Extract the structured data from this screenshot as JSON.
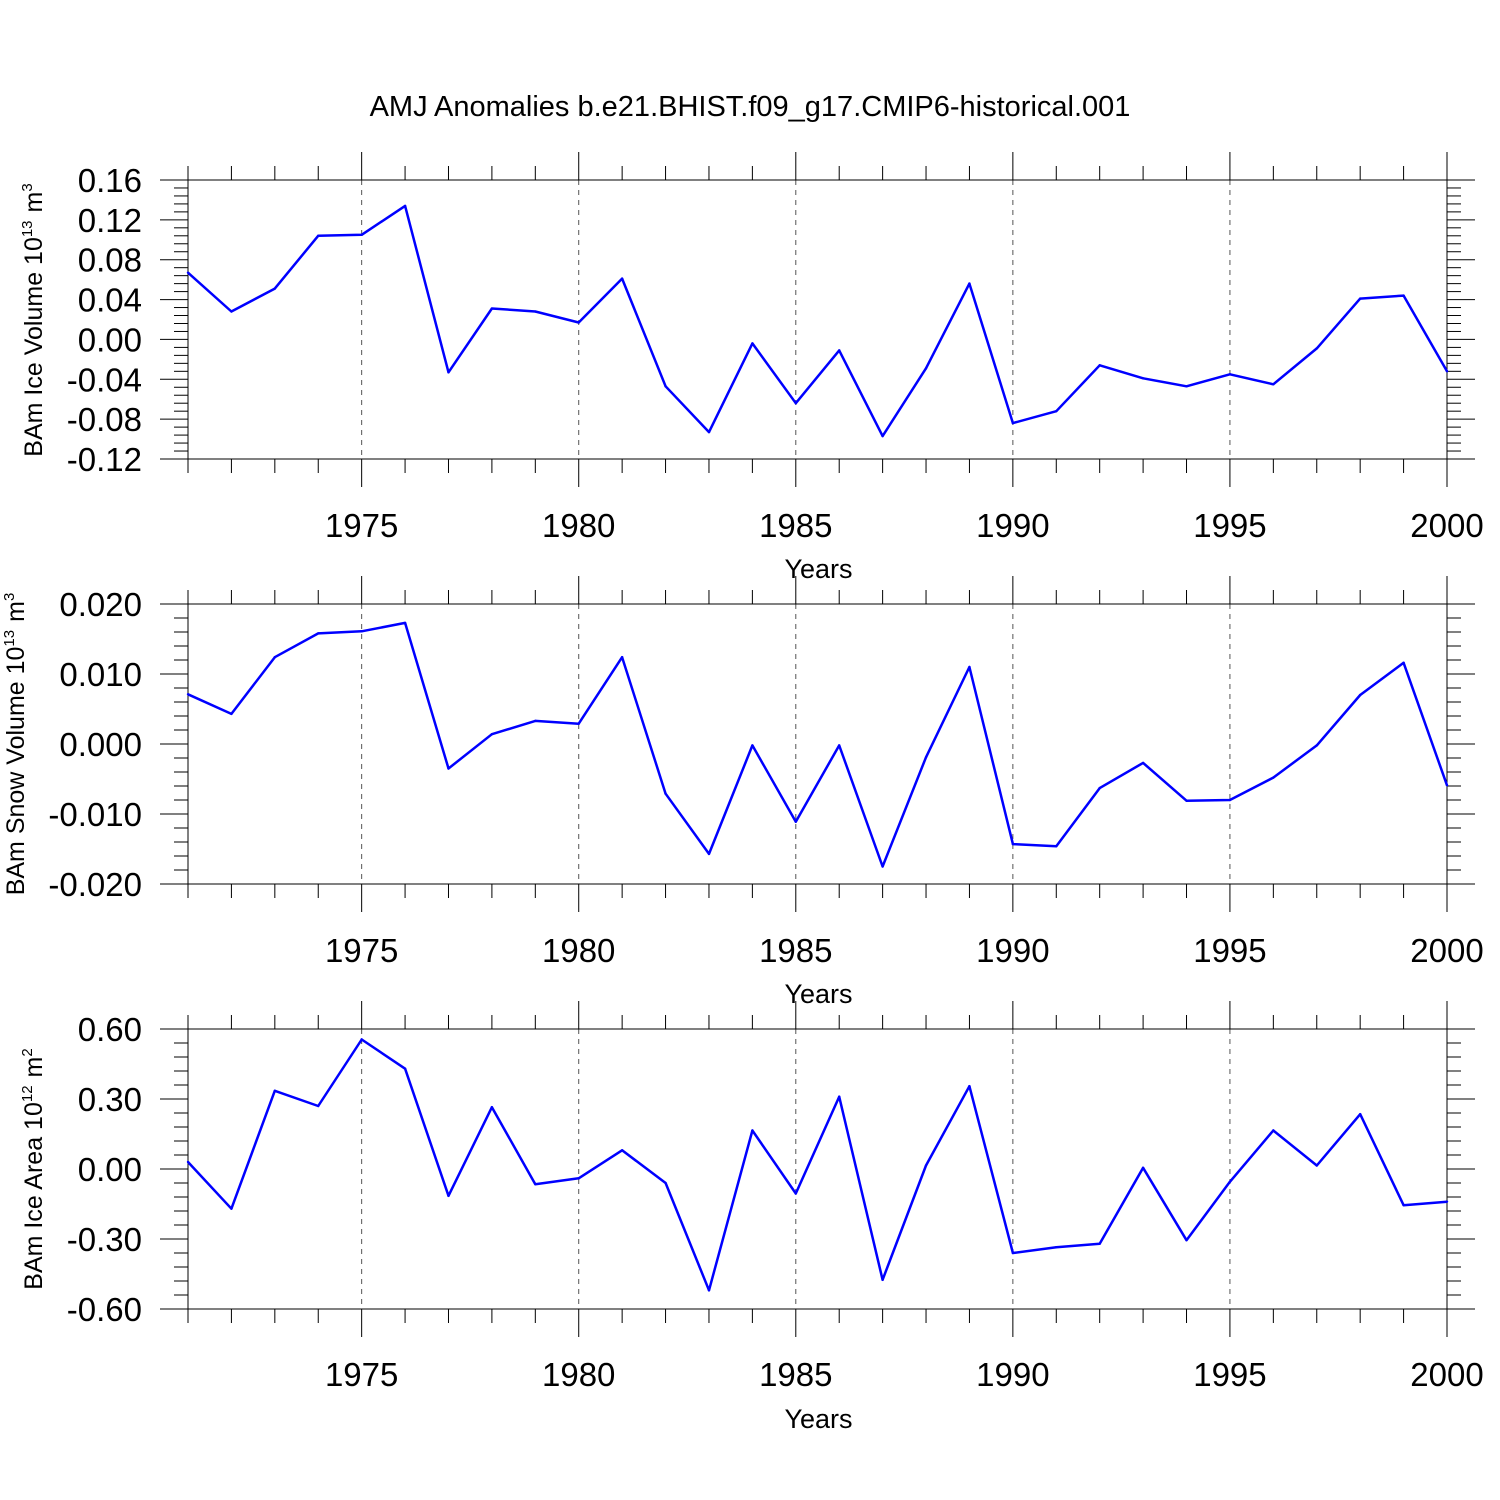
{
  "title": "AMJ Anomalies b.e21.BHIST.f09_g17.CMIP6-historical.001",
  "line_color": "#0000ff",
  "chart_data": [
    {
      "type": "line",
      "ylabel_main": "BAm Ice Volume 10",
      "ylabel_exp": "13",
      "ylabel_unit": "m",
      "ylabel_unit_exp": "3",
      "xlabel": "Years",
      "xlim": [
        1971,
        2000
      ],
      "ylim": [
        -0.12,
        0.16
      ],
      "yticks": [
        "0.16",
        "0.12",
        "0.08",
        "0.04",
        "0.00",
        "-0.04",
        "-0.08",
        "-0.12"
      ],
      "xticks": [
        "1975",
        "1980",
        "1985",
        "1990",
        "1995",
        "2000"
      ],
      "x": [
        1971,
        1972,
        1973,
        1974,
        1975,
        1976,
        1977,
        1978,
        1979,
        1980,
        1981,
        1982,
        1983,
        1984,
        1985,
        1986,
        1987,
        1988,
        1989,
        1990,
        1991,
        1992,
        1993,
        1994,
        1995,
        1996,
        1997,
        1998,
        1999,
        2000
      ],
      "values": [
        0.067,
        0.028,
        0.051,
        0.104,
        0.105,
        0.134,
        -0.033,
        0.031,
        0.028,
        0.017,
        0.061,
        -0.047,
        -0.093,
        -0.004,
        -0.064,
        -0.011,
        -0.097,
        -0.029,
        0.056,
        -0.084,
        -0.072,
        -0.026,
        -0.039,
        -0.047,
        -0.035,
        -0.045,
        -0.009,
        0.041,
        0.044,
        -0.032
      ]
    },
    {
      "type": "line",
      "ylabel_main": "BAm Snow Volume 10",
      "ylabel_exp": "13",
      "ylabel_unit": "m",
      "ylabel_unit_exp": "3",
      "xlabel": "Years",
      "xlim": [
        1971,
        2000
      ],
      "ylim": [
        -0.02,
        0.02
      ],
      "yticks": [
        "0.020",
        "0.010",
        "0.000",
        "-0.010",
        "-0.020"
      ],
      "xticks": [
        "1975",
        "1980",
        "1985",
        "1990",
        "1995",
        "2000"
      ],
      "x": [
        1971,
        1972,
        1973,
        1974,
        1975,
        1976,
        1977,
        1978,
        1979,
        1980,
        1981,
        1982,
        1983,
        1984,
        1985,
        1986,
        1987,
        1988,
        1989,
        1990,
        1991,
        1992,
        1993,
        1994,
        1995,
        1996,
        1997,
        1998,
        1999,
        2000
      ],
      "values": [
        0.0071,
        0.0043,
        0.0124,
        0.0158,
        0.0161,
        0.0173,
        -0.0035,
        0.0014,
        0.0033,
        0.0029,
        0.0124,
        -0.0071,
        -0.0157,
        -0.0002,
        -0.0111,
        -0.0002,
        -0.0175,
        -0.0019,
        0.011,
        -0.0143,
        -0.0146,
        -0.0063,
        -0.0027,
        -0.0081,
        -0.008,
        -0.0048,
        -0.0002,
        0.007,
        0.0116,
        -0.0059
      ]
    },
    {
      "type": "line",
      "ylabel_main": "BAm Ice Area 10",
      "ylabel_exp": "12",
      "ylabel_unit": "m",
      "ylabel_unit_exp": "2",
      "xlabel": "Years",
      "xlim": [
        1971,
        2000
      ],
      "ylim": [
        -0.6,
        0.6
      ],
      "yticks": [
        "0.60",
        "0.30",
        "0.00",
        "-0.30",
        "-0.60"
      ],
      "xticks": [
        "1975",
        "1980",
        "1985",
        "1990",
        "1995",
        "2000"
      ],
      "x": [
        1971,
        1972,
        1973,
        1974,
        1975,
        1976,
        1977,
        1978,
        1979,
        1980,
        1981,
        1982,
        1983,
        1984,
        1985,
        1986,
        1987,
        1988,
        1989,
        1990,
        1991,
        1992,
        1993,
        1994,
        1995,
        1996,
        1997,
        1998,
        1999,
        2000
      ],
      "values": [
        0.03,
        -0.17,
        0.335,
        0.27,
        0.555,
        0.43,
        -0.115,
        0.265,
        -0.065,
        -0.04,
        0.08,
        -0.06,
        -0.52,
        0.165,
        -0.105,
        0.31,
        -0.475,
        0.015,
        0.355,
        -0.36,
        -0.335,
        -0.32,
        0.005,
        -0.305,
        -0.055,
        0.165,
        0.015,
        0.235,
        -0.155,
        -0.14
      ]
    }
  ]
}
